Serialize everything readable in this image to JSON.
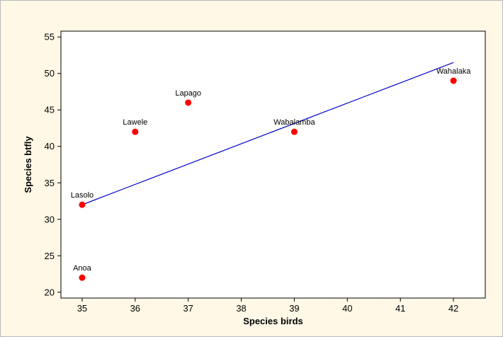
{
  "chart_data": {
    "type": "scatter",
    "title": "",
    "xlabel": "Species birds",
    "ylabel": "Species btfly",
    "xlim": [
      34.6,
      42.6
    ],
    "ylim": [
      19.2,
      55.8
    ],
    "xticks": [
      35,
      36,
      37,
      38,
      39,
      40,
      41,
      42
    ],
    "yticks": [
      20,
      25,
      30,
      35,
      40,
      45,
      50,
      55
    ],
    "grid": false,
    "points": [
      {
        "label": "Anoa",
        "x": 35,
        "y": 22
      },
      {
        "label": "Lasolo",
        "x": 35,
        "y": 32
      },
      {
        "label": "Lawele",
        "x": 36,
        "y": 42
      },
      {
        "label": "Lapago",
        "x": 37,
        "y": 46
      },
      {
        "label": "Wabalamba",
        "x": 39,
        "y": 42
      },
      {
        "label": "Wahalaka",
        "x": 42,
        "y": 49
      }
    ],
    "fit_line": {
      "x": [
        35,
        42
      ],
      "y": [
        32.0,
        51.5
      ]
    },
    "colors": {
      "points": "#ff0000",
      "fit_line": "#0000cc",
      "background": "#fff8e6",
      "plot_area": "#ffffff"
    }
  }
}
